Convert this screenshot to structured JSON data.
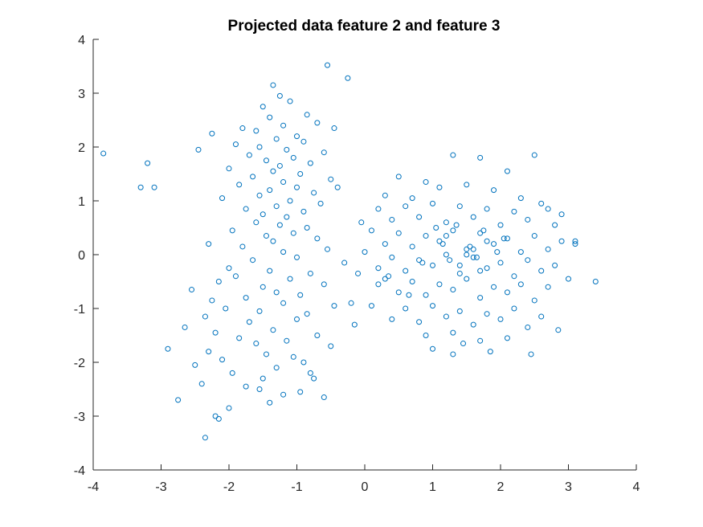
{
  "chart_data": {
    "type": "scatter",
    "title": "Projected data feature 2 and feature 3",
    "xlabel": "",
    "ylabel": "",
    "xlim": [
      -4,
      4
    ],
    "ylim": [
      -4,
      4
    ],
    "xticks": [
      "-4",
      "-3",
      "-2",
      "-1",
      "0",
      "1",
      "2",
      "3",
      "4"
    ],
    "yticks": [
      "-4",
      "-3",
      "-2",
      "-1",
      "0",
      "1",
      "2",
      "3",
      "4"
    ],
    "grid": false,
    "legend": "none",
    "marker": "open-circle",
    "color": "#0072BD",
    "series": [
      {
        "x": [
          -1.35,
          -1.25,
          -0.55,
          -0.25,
          -1.1,
          -1.5,
          -0.85,
          -1.4,
          -1.8,
          -0.7,
          -1.2,
          -1.6,
          -1.0,
          -0.45,
          -1.3,
          -1.9,
          -0.9,
          -1.55,
          -1.15,
          -0.6,
          -1.7,
          -1.05,
          -1.45,
          -0.8,
          -1.25,
          -2.0,
          -1.35,
          -0.95,
          -1.65,
          -0.5,
          -1.2,
          -1.85,
          -1.0,
          -1.4,
          -0.75,
          -1.55,
          -2.1,
          -1.1,
          -0.65,
          -1.3,
          -1.75,
          -0.9,
          -1.5,
          -1.15,
          -2.25,
          -0.4,
          -1.6,
          -1.25,
          -0.85,
          -1.95,
          -1.05,
          -1.45,
          -0.7,
          -1.35,
          -2.3,
          -1.8,
          -0.55,
          -1.2,
          -2.45,
          -1.0,
          -1.65,
          -0.3,
          -2.0,
          -1.4,
          -0.8,
          -1.9,
          -1.1,
          -2.15,
          -0.6,
          -1.5,
          -2.55,
          -1.3,
          -0.95,
          -1.75,
          -2.25,
          -1.2,
          -0.45,
          -2.05,
          -1.55,
          -0.85,
          -2.35,
          -1.0,
          -1.7,
          -0.15,
          -2.65,
          -1.35,
          -2.2,
          -0.7,
          -1.85,
          -1.15,
          -2.9,
          -1.6,
          -0.5,
          -2.3,
          -1.45,
          -3.2,
          -1.05,
          -2.1,
          -0.9,
          -2.5,
          -1.3,
          -3.3,
          -1.95,
          -0.75,
          -3.1,
          -2.4,
          -1.55,
          -3.85,
          -1.2,
          -2.75,
          -0.6,
          -2.0,
          -1.4,
          -2.2,
          -1.75,
          -0.95,
          -2.15,
          -1.5,
          -0.8,
          -2.35
        ],
        "y": [
          3.15,
          2.95,
          3.52,
          3.28,
          2.85,
          2.75,
          2.6,
          2.55,
          2.35,
          2.45,
          2.4,
          2.3,
          2.2,
          2.35,
          2.15,
          2.05,
          2.1,
          2.0,
          1.95,
          1.9,
          1.85,
          1.8,
          1.75,
          1.7,
          1.65,
          1.6,
          1.55,
          1.5,
          1.45,
          1.4,
          1.35,
          1.3,
          1.25,
          1.2,
          1.15,
          1.1,
          1.05,
          1.0,
          0.95,
          0.9,
          0.85,
          0.8,
          0.75,
          0.7,
          2.25,
          1.25,
          0.6,
          0.55,
          0.5,
          0.45,
          0.4,
          0.35,
          0.3,
          0.25,
          0.2,
          0.15,
          0.1,
          0.05,
          1.95,
          -0.05,
          -0.1,
          -0.15,
          -0.25,
          -0.3,
          -0.35,
          -0.4,
          -0.45,
          -0.5,
          -0.55,
          -0.6,
          -0.65,
          -0.7,
          -0.75,
          -0.8,
          -0.85,
          -0.9,
          -0.95,
          -1.0,
          -1.05,
          -1.1,
          -1.15,
          -1.2,
          -1.25,
          -1.3,
          -1.35,
          -1.4,
          -1.45,
          -1.5,
          -1.55,
          -1.6,
          -1.75,
          -1.65,
          -1.7,
          -1.8,
          -1.85,
          1.7,
          -1.9,
          -1.95,
          -2.0,
          -2.05,
          -2.1,
          1.25,
          -2.2,
          -2.3,
          1.25,
          -2.4,
          -2.5,
          1.88,
          -2.6,
          -2.7,
          -2.65,
          -2.85,
          -2.75,
          -3.0,
          -2.45,
          -2.55,
          -3.05,
          -2.3,
          -2.2,
          -3.4
        ],
        "xB": [
          0.5,
          0.9,
          1.3,
          1.7,
          2.1,
          0.3,
          0.7,
          1.1,
          1.5,
          1.9,
          2.3,
          0.2,
          0.6,
          1.0,
          1.4,
          1.8,
          2.2,
          2.6,
          0.4,
          0.8,
          1.2,
          1.6,
          2.0,
          2.4,
          2.8,
          0.1,
          0.5,
          0.9,
          1.3,
          1.7,
          2.1,
          2.5,
          2.9,
          0.3,
          0.7,
          1.1,
          1.5,
          1.9,
          2.3,
          2.7,
          3.1,
          0.0,
          0.4,
          0.8,
          1.2,
          1.6,
          2.0,
          2.4,
          2.8,
          3.4,
          0.2,
          0.6,
          1.0,
          1.4,
          1.8,
          2.2,
          2.6,
          3.0,
          -0.1,
          0.3,
          0.7,
          1.1,
          1.5,
          1.9,
          2.3,
          2.7,
          0.5,
          0.9,
          1.3,
          1.7,
          2.1,
          2.5,
          -0.2,
          0.1,
          0.6,
          1.0,
          1.4,
          1.8,
          2.2,
          2.6,
          0.4,
          0.8,
          1.2,
          1.6,
          2.0,
          2.4,
          0.9,
          1.3,
          1.7,
          2.1,
          1.0,
          1.45,
          1.85,
          2.45,
          1.35,
          1.75,
          1.15,
          1.55,
          1.95,
          0.85,
          1.25,
          1.65,
          2.05,
          1.05,
          1.5,
          1.6,
          1.8,
          1.4,
          1.7,
          1.2,
          2.5,
          2.7,
          3.1,
          2.9,
          0.35,
          0.65,
          -0.05,
          0.2,
          1.3,
          2.85
        ],
        "yB": [
          1.45,
          1.35,
          1.85,
          1.8,
          1.55,
          1.1,
          1.05,
          1.25,
          1.3,
          1.2,
          1.05,
          0.85,
          0.9,
          0.95,
          0.9,
          0.85,
          0.8,
          0.95,
          0.65,
          0.7,
          0.6,
          0.7,
          0.55,
          0.65,
          0.55,
          0.45,
          0.4,
          0.35,
          0.45,
          0.4,
          0.3,
          0.35,
          0.25,
          0.2,
          0.15,
          0.25,
          0.1,
          0.2,
          0.05,
          0.1,
          0.25,
          0.05,
          -0.05,
          -0.1,
          0.0,
          -0.05,
          -0.15,
          -0.1,
          -0.2,
          -0.5,
          -0.25,
          -0.3,
          -0.2,
          -0.35,
          -0.25,
          -0.4,
          -0.3,
          -0.45,
          -0.35,
          -0.45,
          -0.5,
          -0.55,
          -0.45,
          -0.6,
          -0.55,
          -0.6,
          -0.7,
          -0.75,
          -0.65,
          -0.8,
          -0.7,
          -0.85,
          -0.9,
          -0.95,
          -1.0,
          -0.95,
          -1.05,
          -1.1,
          -1.0,
          -1.15,
          -1.2,
          -1.25,
          -1.15,
          -1.3,
          -1.2,
          -1.35,
          -1.5,
          -1.45,
          -1.6,
          -1.55,
          -1.75,
          -1.65,
          -1.8,
          -1.85,
          0.55,
          0.45,
          0.2,
          0.15,
          0.05,
          -0.15,
          -0.1,
          -0.05,
          0.3,
          0.5,
          0.0,
          0.1,
          0.25,
          -0.2,
          -0.3,
          0.35,
          1.85,
          0.85,
          0.2,
          0.75,
          -0.4,
          -0.75,
          0.6,
          -0.55,
          -1.85,
          -1.4
        ]
      }
    ]
  }
}
